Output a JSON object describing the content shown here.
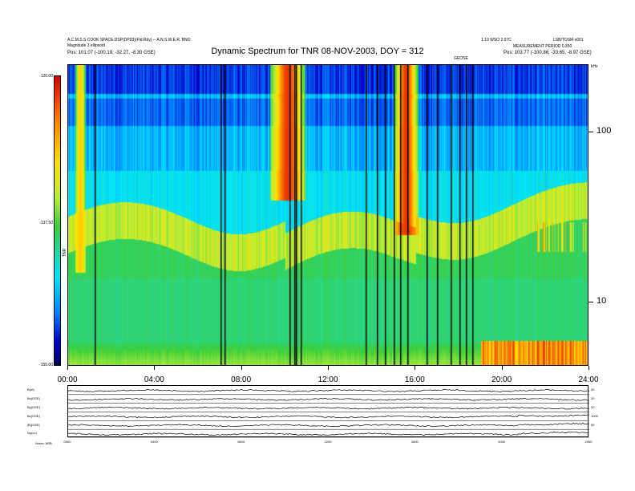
{
  "header": {
    "left_line1": "A.C.M.S.S.COOK SPACE.DSP(DP93)(Fld.Rdy) -- A.N.S.W.E.R. BNO",
    "left_line2": "Magnitude 3 ellipsoid",
    "left_line3": "Pos:     101.07 (-100.19, -32.27, -8.30 GSE)",
    "right_line1": "1.10 WSO 2.07C",
    "right_line1b": "LSB/TOSM-s001",
    "right_line2": "MEASUREMENT PERIOD 0.350",
    "right_line3": "Pos:   103.77 (-100.86, -33.65, -8.97 GSE)",
    "mid_label": "GEOSE"
  },
  "chart_data": {
    "type": "heatmap",
    "title": "Dynamic Spectrum for TNR 08-NOV-2003, DOY = 312",
    "colorbar": {
      "max_label": "-120.00",
      "mid_label": "-137.50",
      "min_label": "-155.00",
      "unit": "TNR",
      "colormap": [
        "#000060",
        "#0000c8",
        "#0080ff",
        "#00e5ff",
        "#22d8b0",
        "#3ccf3c",
        "#b8ee3a",
        "#ffe100",
        "#ff7a00",
        "#d40000"
      ]
    },
    "y_axis": {
      "scale": "log",
      "unit": "kHz",
      "tick_labels": [
        "100",
        "10"
      ],
      "tick_values": [
        100,
        10
      ],
      "range": [
        4.2,
        250
      ]
    },
    "x_axis": {
      "tick_labels": [
        "00:00",
        "04:00",
        "08:00",
        "12:00",
        "16:00",
        "20:00",
        "24:00"
      ],
      "range_hours": [
        0,
        24
      ]
    },
    "data_gaps_hours": [
      1.2,
      7.0,
      7.2,
      10.2,
      10.4,
      10.5,
      10.7,
      13.7,
      14.2,
      14.6,
      15.0,
      15.3,
      15.6,
      16.5,
      17.0,
      17.6,
      18.0,
      18.3,
      18.6
    ],
    "features": [
      {
        "description_hours": [
          9.3,
          10.9
        ],
        "freq_khz": [
          40,
          250
        ],
        "level": "high"
      },
      {
        "description_hours": [
          15.0,
          16.1
        ],
        "freq_khz": [
          25,
          250
        ],
        "level": "high"
      },
      {
        "description_hours": [
          0.3,
          0.8
        ],
        "freq_khz": [
          15,
          250
        ],
        "level": "medium"
      }
    ]
  },
  "lower_panel": {
    "left_labels": [
      "B(nt)",
      "Bx(GSE)",
      "By(GSE)",
      "Bz(GSE)",
      "|B|(GSE)",
      "Np(cc)"
    ],
    "right_labels": [
      "20",
      "20",
      "20",
      "1000",
      "50"
    ],
    "x_tick_labels": [
      "0000",
      "0400",
      "0800",
      "1200",
      "1600",
      "2000",
      "2400"
    ],
    "footer": "Notes: ARB"
  }
}
